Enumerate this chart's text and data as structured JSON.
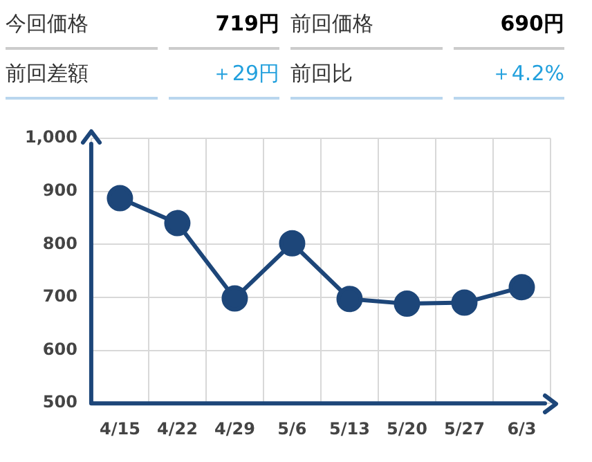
{
  "chart_data": [
    {
      "type": "other",
      "annotations": [
        "今回価格",
        "719円",
        "前回価格",
        "690円",
        "前回差額",
        "＋29円",
        "前回比",
        "＋4.2%"
      ]
    },
    {
      "type": "line",
      "categories": [
        "4/15",
        "4/22",
        "4/29",
        "5/6",
        "5/13",
        "5/20",
        "5/27",
        "6/3"
      ],
      "series": [
        {
          "color": "#1d4679",
          "values": [
            887,
            840,
            698,
            802,
            697,
            688,
            690,
            719
          ]
        }
      ],
      "ylim": [
        500,
        1000
      ],
      "yticks": [
        500,
        600,
        700,
        800,
        900,
        {
          "value": 1000,
          "label": "1,000"
        }
      ],
      "grid": true,
      "legend": false,
      "marker": "circle",
      "line_style": "solid"
    }
  ]
}
